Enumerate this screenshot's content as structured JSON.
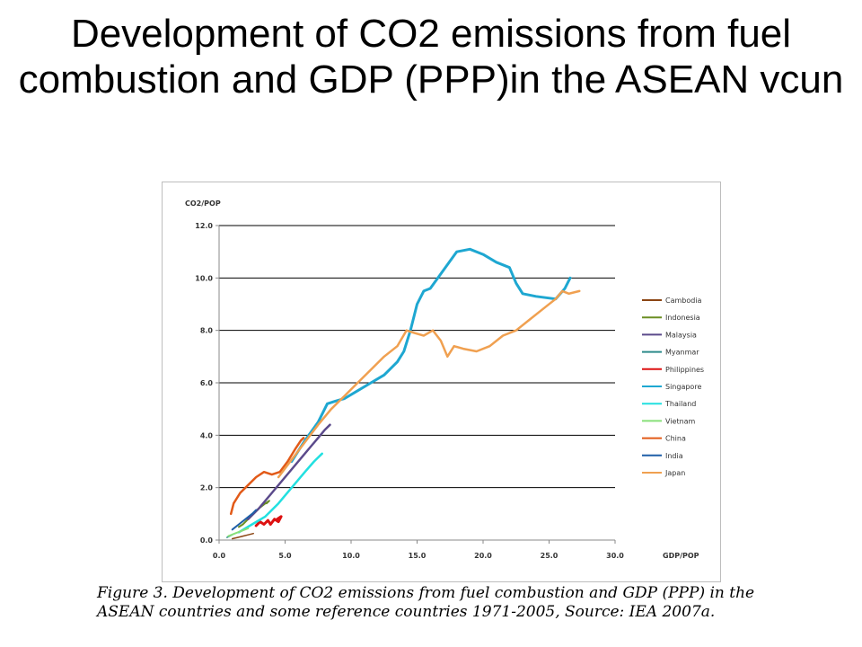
{
  "slide": {
    "title": "Development of CO2 emissions from fuel combustion and GDP (PPP)in the ASEAN vcun"
  },
  "caption": {
    "line1": "Figure 3. Development of CO2 emissions from fuel combustion and GDP (PPP) in the",
    "line2": "ASEAN countries and some reference countries 1971-2005, Source: IEA 2007a."
  },
  "chart_data": {
    "type": "line",
    "title": "",
    "xlabel": "GDP/POP",
    "ylabel": "CO2/POP",
    "xlim": [
      0,
      30
    ],
    "ylim": [
      0,
      12
    ],
    "x_ticks": [
      "0.0",
      "5.0",
      "10.0",
      "15.0",
      "20.0",
      "25.0",
      "30.0"
    ],
    "y_ticks": [
      "0.0",
      "2.0",
      "4.0",
      "6.0",
      "8.0",
      "10.0",
      "12.0"
    ],
    "grid": "horizontal",
    "legend_position": "right",
    "series": [
      {
        "name": "Cambodia",
        "color": "#8b4513",
        "width": 1.5,
        "points": [
          [
            1.0,
            0.05
          ],
          [
            1.4,
            0.1
          ],
          [
            1.8,
            0.15
          ],
          [
            2.2,
            0.2
          ],
          [
            2.6,
            0.25
          ]
        ]
      },
      {
        "name": "Indonesia",
        "color": "#6b8e23",
        "width": 2,
        "points": [
          [
            1.5,
            0.5
          ],
          [
            1.8,
            0.6
          ],
          [
            2.2,
            0.8
          ],
          [
            2.6,
            1.0
          ],
          [
            3.0,
            1.2
          ],
          [
            3.5,
            1.4
          ],
          [
            3.8,
            1.5
          ],
          [
            3.6,
            1.4
          ]
        ]
      },
      {
        "name": "Malaysia",
        "color": "#5b4a8b",
        "width": 2.5,
        "points": [
          [
            2.2,
            0.8
          ],
          [
            3.0,
            1.2
          ],
          [
            4.0,
            1.8
          ],
          [
            5.0,
            2.4
          ],
          [
            6.0,
            3.0
          ],
          [
            7.0,
            3.6
          ],
          [
            7.5,
            3.9
          ],
          [
            8.0,
            4.2
          ],
          [
            8.4,
            4.4
          ],
          [
            8.2,
            4.3
          ]
        ]
      },
      {
        "name": "Myanmar",
        "color": "#2e8b8b",
        "width": 1.5,
        "points": [
          [
            0.6,
            0.1
          ],
          [
            0.8,
            0.15
          ],
          [
            1.0,
            0.2
          ]
        ]
      },
      {
        "name": "Philippines",
        "color": "#dd1111",
        "width": 3,
        "points": [
          [
            2.8,
            0.55
          ],
          [
            3.1,
            0.7
          ],
          [
            3.4,
            0.6
          ],
          [
            3.7,
            0.75
          ],
          [
            3.9,
            0.6
          ],
          [
            4.2,
            0.8
          ],
          [
            4.5,
            0.7
          ],
          [
            4.7,
            0.9
          ],
          [
            4.4,
            0.8
          ]
        ]
      },
      {
        "name": "Singapore",
        "color": "#1ea7d1",
        "width": 3,
        "points": [
          [
            5.5,
            3.0
          ],
          [
            6.5,
            3.8
          ],
          [
            7.5,
            4.5
          ],
          [
            8.2,
            5.2
          ],
          [
            8.8,
            5.3
          ],
          [
            9.5,
            5.4
          ],
          [
            10.5,
            5.7
          ],
          [
            11.5,
            6.0
          ],
          [
            12.5,
            6.3
          ],
          [
            13.5,
            6.8
          ],
          [
            14.0,
            7.2
          ],
          [
            14.5,
            8.0
          ],
          [
            15.0,
            9.0
          ],
          [
            15.5,
            9.5
          ],
          [
            16.0,
            9.6
          ],
          [
            17.0,
            10.3
          ],
          [
            18.0,
            11.0
          ],
          [
            19.0,
            11.1
          ],
          [
            20.0,
            10.9
          ],
          [
            21.0,
            10.6
          ],
          [
            22.0,
            10.4
          ],
          [
            22.5,
            9.8
          ],
          [
            23.0,
            9.4
          ],
          [
            24.0,
            9.3
          ],
          [
            25.5,
            9.2
          ],
          [
            26.2,
            9.6
          ],
          [
            26.6,
            10.0
          ]
        ]
      },
      {
        "name": "Thailand",
        "color": "#22e0e0",
        "width": 2.5,
        "points": [
          [
            1.5,
            0.3
          ],
          [
            2.5,
            0.6
          ],
          [
            3.5,
            0.9
          ],
          [
            4.5,
            1.4
          ],
          [
            5.5,
            2.0
          ],
          [
            6.5,
            2.6
          ],
          [
            7.2,
            3.0
          ],
          [
            7.8,
            3.3
          ]
        ]
      },
      {
        "name": "Vietnam",
        "color": "#88e07a",
        "width": 2,
        "points": [
          [
            0.7,
            0.15
          ],
          [
            1.2,
            0.25
          ],
          [
            1.7,
            0.35
          ],
          [
            2.2,
            0.45
          ]
        ]
      },
      {
        "name": "China",
        "color": "#e25a18",
        "width": 2.5,
        "points": [
          [
            0.9,
            1.0
          ],
          [
            1.1,
            1.4
          ],
          [
            1.6,
            1.8
          ],
          [
            2.2,
            2.1
          ],
          [
            2.8,
            2.4
          ],
          [
            3.4,
            2.6
          ],
          [
            4.0,
            2.5
          ],
          [
            4.6,
            2.6
          ],
          [
            5.2,
            3.0
          ],
          [
            5.8,
            3.5
          ],
          [
            6.2,
            3.8
          ],
          [
            6.4,
            3.9
          ]
        ]
      },
      {
        "name": "India",
        "color": "#1e5fa8",
        "width": 2,
        "points": [
          [
            1.0,
            0.4
          ],
          [
            1.5,
            0.6
          ],
          [
            2.0,
            0.8
          ],
          [
            2.5,
            1.0
          ],
          [
            2.8,
            1.15
          ]
        ]
      },
      {
        "name": "Japan",
        "color": "#f0a050",
        "width": 2.5,
        "points": [
          [
            4.5,
            2.4
          ],
          [
            6.0,
            3.4
          ],
          [
            7.5,
            4.4
          ],
          [
            8.5,
            5.0
          ],
          [
            9.5,
            5.5
          ],
          [
            10.5,
            6.0
          ],
          [
            11.5,
            6.5
          ],
          [
            12.5,
            7.0
          ],
          [
            13.5,
            7.4
          ],
          [
            14.2,
            8.0
          ],
          [
            14.8,
            7.9
          ],
          [
            15.5,
            7.8
          ],
          [
            16.2,
            8.0
          ],
          [
            16.8,
            7.6
          ],
          [
            17.3,
            7.0
          ],
          [
            17.8,
            7.4
          ],
          [
            18.5,
            7.3
          ],
          [
            19.5,
            7.2
          ],
          [
            20.5,
            7.4
          ],
          [
            21.5,
            7.8
          ],
          [
            22.5,
            8.0
          ],
          [
            23.5,
            8.4
          ],
          [
            24.5,
            8.8
          ],
          [
            25.5,
            9.2
          ],
          [
            26.0,
            9.5
          ],
          [
            26.5,
            9.4
          ],
          [
            27.3,
            9.5
          ]
        ]
      }
    ]
  }
}
